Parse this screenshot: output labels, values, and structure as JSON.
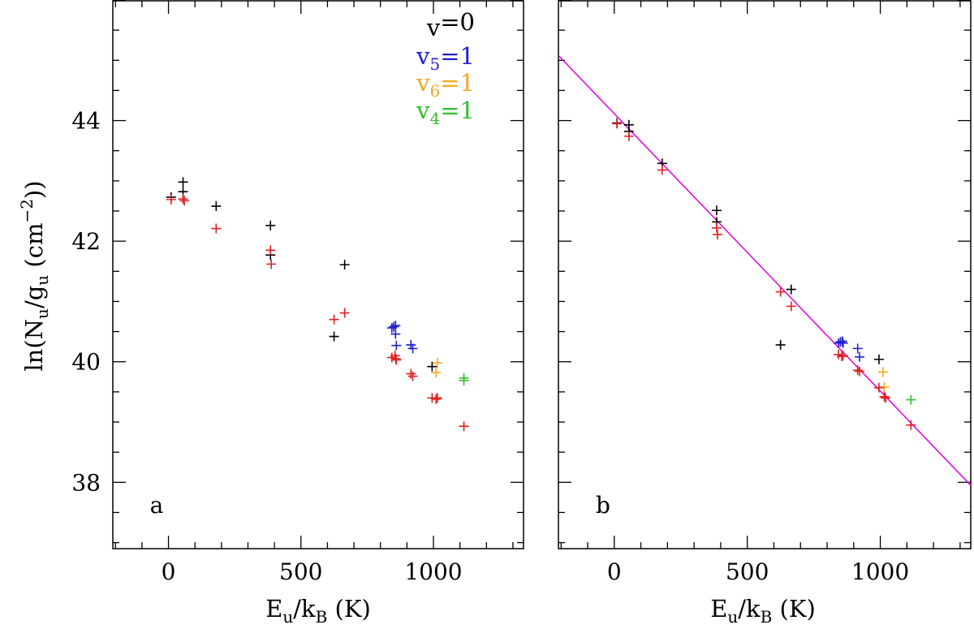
{
  "figure": {
    "ylabel_text": "ln(N",
    "ylabel_sub1": "u",
    "ylabel_mid": "/g",
    "ylabel_sub2": "u",
    "ylabel_units": " (cm",
    "ylabel_exp": "−2",
    "ylabel_close": "))",
    "xlabel_text": "E",
    "xlabel_sub1": "u",
    "xlabel_mid": "/k",
    "xlabel_sub2": "B",
    "xlabel_units": " (K)"
  },
  "legend": [
    {
      "prefix": "v",
      "sub": "",
      "suffix": "=0",
      "color": "#000000"
    },
    {
      "prefix": "v",
      "sub": "5",
      "suffix": "=1",
      "color": "#1f1fd0"
    },
    {
      "prefix": "v",
      "sub": "6",
      "suffix": "=1",
      "color": "#f5a623"
    },
    {
      "prefix": "v",
      "sub": "4",
      "suffix": "=1",
      "color": "#2fbf2f"
    }
  ],
  "chart_data": [
    {
      "type": "scatter",
      "panel_label": "a",
      "xlim": [
        -210,
        1340
      ],
      "ylim": [
        36.9,
        46.0
      ],
      "xticks": [
        0,
        500,
        1000
      ],
      "yticks": [
        38,
        40,
        42,
        44
      ],
      "grid": false,
      "legend_position": "top-right",
      "series": [
        {
          "name": "v=0",
          "color": "#000000",
          "marker": "plus",
          "points": [
            [
              10,
              42.73
            ],
            [
              55,
              42.98
            ],
            [
              55,
              42.82
            ],
            [
              180,
              42.58
            ],
            [
              385,
              42.26
            ],
            [
              385,
              41.77
            ],
            [
              625,
              40.42
            ],
            [
              665,
              41.61
            ],
            [
              995,
              39.92
            ]
          ]
        },
        {
          "name": "v5=1",
          "color": "#1f1fd0",
          "marker": "plus",
          "points": [
            [
              843,
              40.56
            ],
            [
              850,
              40.58
            ],
            [
              857,
              40.6
            ],
            [
              857,
              40.46
            ],
            [
              860,
              40.27
            ],
            [
              915,
              40.28
            ],
            [
              922,
              40.22
            ]
          ]
        },
        {
          "name": "v6=1",
          "color": "#f5a623",
          "marker": "plus",
          "points": [
            [
              1010,
              39.82
            ],
            [
              1015,
              39.98
            ]
          ]
        },
        {
          "name": "v4=1",
          "color": "#2fbf2f",
          "marker": "plus",
          "points": [
            [
              1115,
              39.69
            ],
            [
              1115,
              39.73
            ]
          ]
        },
        {
          "color": "#e02020",
          "marker": "plus",
          "points": [
            [
              10,
              42.69
            ],
            [
              55,
              42.7
            ],
            [
              60,
              42.67
            ],
            [
              180,
              42.21
            ],
            [
              385,
              41.85
            ],
            [
              388,
              41.62
            ],
            [
              625,
              40.7
            ],
            [
              665,
              40.81
            ],
            [
              843,
              40.07
            ],
            [
              855,
              40.1
            ],
            [
              858,
              40.05
            ],
            [
              860,
              40.03
            ],
            [
              915,
              39.8
            ],
            [
              922,
              39.76
            ],
            [
              995,
              39.4
            ],
            [
              1010,
              39.38
            ],
            [
              1015,
              39.4
            ],
            [
              1115,
              38.93
            ]
          ]
        }
      ]
    },
    {
      "type": "scatter",
      "panel_label": "b",
      "xlim": [
        -210,
        1340
      ],
      "ylim": [
        36.9,
        46.0
      ],
      "xticks": [
        0,
        500,
        1000
      ],
      "yticks": [
        38,
        40,
        42,
        44
      ],
      "grid": false,
      "fit_line": {
        "color": "#e000e0",
        "x": [
          -210,
          1340
        ],
        "y": [
          45.08,
          37.95
        ]
      },
      "series": [
        {
          "name": "v=0",
          "color": "#000000",
          "marker": "plus",
          "points": [
            [
              10,
              43.96
            ],
            [
              55,
              43.93
            ],
            [
              55,
              43.82
            ],
            [
              180,
              43.29
            ],
            [
              385,
              42.51
            ],
            [
              385,
              42.32
            ],
            [
              625,
              40.28
            ],
            [
              665,
              41.2
            ],
            [
              995,
              40.04
            ]
          ]
        },
        {
          "name": "v5=1",
          "color": "#1f1fd0",
          "marker": "plus",
          "points": [
            [
              843,
              40.31
            ],
            [
              850,
              40.33
            ],
            [
              857,
              40.34
            ],
            [
              860,
              40.31
            ],
            [
              915,
              40.22
            ],
            [
              922,
              40.08
            ]
          ]
        },
        {
          "name": "v6=1",
          "color": "#f5a623",
          "marker": "plus",
          "points": [
            [
              1010,
              39.83
            ],
            [
              1015,
              39.58
            ]
          ]
        },
        {
          "name": "v4=1",
          "color": "#2fbf2f",
          "marker": "plus",
          "points": [
            [
              1115,
              39.37
            ]
          ]
        },
        {
          "color": "#e02020",
          "marker": "plus",
          "points": [
            [
              10,
              43.95
            ],
            [
              55,
              43.74
            ],
            [
              180,
              43.18
            ],
            [
              385,
              42.22
            ],
            [
              388,
              42.11
            ],
            [
              625,
              41.16
            ],
            [
              665,
              40.92
            ],
            [
              843,
              40.12
            ],
            [
              855,
              40.09
            ],
            [
              860,
              40.1
            ],
            [
              915,
              39.86
            ],
            [
              922,
              39.84
            ],
            [
              995,
              39.57
            ],
            [
              1015,
              39.42
            ],
            [
              1020,
              39.4
            ],
            [
              1115,
              38.95
            ]
          ]
        }
      ]
    }
  ]
}
